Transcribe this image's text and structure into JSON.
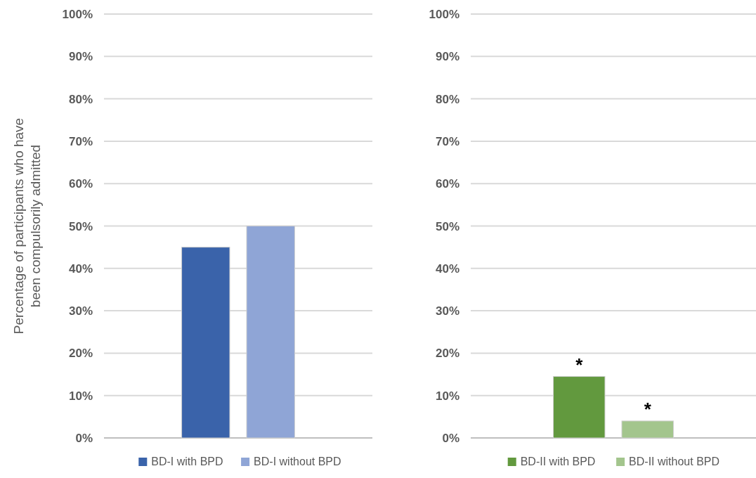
{
  "chart_data": [
    {
      "type": "bar",
      "ylabel": "Percentage of  participants who have been compulsorily admitted",
      "categories": [
        null
      ],
      "series": [
        {
          "name": "BD-I with BPD",
          "color": "#3a63aa",
          "values": [
            45
          ]
        },
        {
          "name": "BD-I without BPD",
          "color": "#8fa5d6",
          "values": [
            50
          ]
        }
      ],
      "ylim": [
        0,
        100
      ],
      "yticks": [
        {
          "value": 0,
          "label": "0%"
        },
        {
          "value": 10,
          "label": "10%"
        },
        {
          "value": 20,
          "label": "20%"
        },
        {
          "value": 30,
          "label": "30%"
        },
        {
          "value": 40,
          "label": "40%"
        },
        {
          "value": 50,
          "label": "50%"
        },
        {
          "value": 60,
          "label": "60%"
        },
        {
          "value": 70,
          "label": "70%"
        },
        {
          "value": 80,
          "label": "80%"
        },
        {
          "value": 90,
          "label": "90%"
        },
        {
          "value": 100,
          "label": "100%"
        }
      ],
      "grid": "y",
      "legend": "bottom"
    },
    {
      "type": "bar",
      "categories": [
        null
      ],
      "series": [
        {
          "name": "BD-II with BPD",
          "color": "#62993e",
          "values": [
            14.5
          ]
        },
        {
          "name": "BD-II without BPD",
          "color": "#a3c58d",
          "values": [
            4
          ]
        }
      ],
      "annotations": [
        "*",
        "*"
      ],
      "ylim": [
        0,
        100
      ],
      "yticks": [
        {
          "value": 0,
          "label": "0%"
        },
        {
          "value": 10,
          "label": "10%"
        },
        {
          "value": 20,
          "label": "20%"
        },
        {
          "value": 30,
          "label": "30%"
        },
        {
          "value": 40,
          "label": "40%"
        },
        {
          "value": 50,
          "label": "50%"
        },
        {
          "value": 60,
          "label": "60%"
        },
        {
          "value": 70,
          "label": "70%"
        },
        {
          "value": 80,
          "label": "80%"
        },
        {
          "value": 90,
          "label": "90%"
        },
        {
          "value": 100,
          "label": "100%"
        }
      ],
      "grid": "y",
      "legend": "bottom"
    }
  ]
}
